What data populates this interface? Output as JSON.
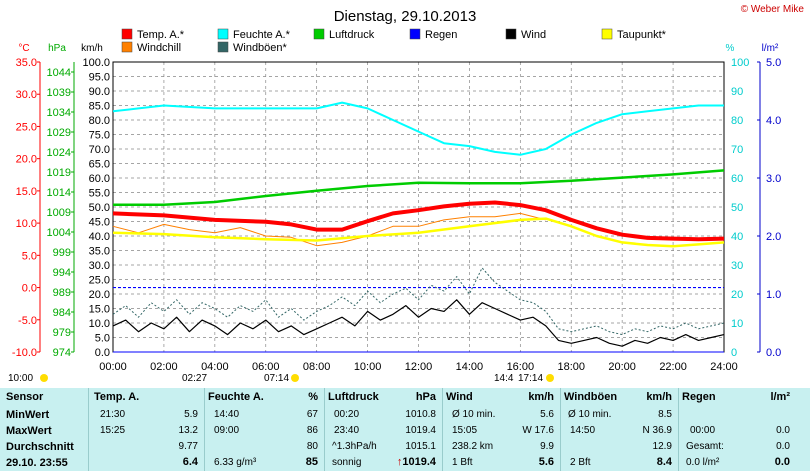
{
  "title": "Dienstag, 29.10.2013",
  "copyright": "© Weber Mike",
  "legend": [
    {
      "label": "Temp. A.*",
      "color": "#ff0000"
    },
    {
      "label": "Feuchte A.*",
      "color": "#00ffff"
    },
    {
      "label": "Luftdruck",
      "color": "#00cc00"
    },
    {
      "label": "Regen",
      "color": "#0000ff"
    },
    {
      "label": "Wind",
      "color": "#000000"
    },
    {
      "label": "Taupunkt*",
      "color": "#ffff00"
    },
    {
      "label": "Windchill",
      "color": "#ff8000"
    },
    {
      "label": "Windböen*",
      "color": "#336666"
    }
  ],
  "axis_units": {
    "temp": "°C",
    "press": "hPa",
    "wind": "km/h",
    "hum": "%",
    "rain": "l/m²"
  },
  "sun_markers": {
    "left": "10:00",
    "rise_top": "02:27",
    "rise_bottom": "07:14",
    "set_top": "14:4",
    "set_bottom": "17:14"
  },
  "chart_data": {
    "type": "line",
    "title": "Dienstag, 29.10.2013",
    "x_range": [
      "00:00",
      "24:00"
    ],
    "x_ticks": [
      "00:00",
      "02:00",
      "04:00",
      "06:00",
      "08:00",
      "10:00",
      "12:00",
      "14:00",
      "16:00",
      "18:00",
      "20:00",
      "22:00",
      "24:00"
    ],
    "axes": {
      "temp": {
        "unit": "°C",
        "range": [
          -10,
          35
        ],
        "ticks": [
          "35.0",
          "30.0",
          "25.0",
          "20.0",
          "15.0",
          "10.0",
          "5.0",
          "0.0",
          "-5.0",
          "-10.0"
        ]
      },
      "press": {
        "unit": "hPa",
        "range": [
          974,
          1046.5
        ],
        "ticks": [
          "1044",
          "1039",
          "1034",
          "1029",
          "1024",
          "1019",
          "1014",
          "1009",
          "1004",
          "999",
          "994",
          "989",
          "984",
          "979",
          "974"
        ]
      },
      "wind": {
        "unit": "km/h",
        "range": [
          0,
          100
        ],
        "ticks": [
          "100.0",
          "95.0",
          "90.0",
          "85.0",
          "80.0",
          "75.0",
          "70.0",
          "65.0",
          "60.0",
          "55.0",
          "50.0",
          "45.0",
          "40.0",
          "35.0",
          "30.0",
          "25.0",
          "20.0",
          "15.0",
          "10.0",
          "5.0",
          "0.0"
        ]
      },
      "hum": {
        "unit": "%",
        "range": [
          0,
          100
        ],
        "ticks": [
          "100",
          "90",
          "80",
          "70",
          "60",
          "50",
          "40",
          "30",
          "20",
          "10",
          "0"
        ]
      },
      "rain": {
        "unit": "l/m²",
        "range": [
          0,
          5
        ],
        "ticks": [
          "5.0",
          "4.0",
          "3.0",
          "2.0",
          "1.0",
          "0.0"
        ]
      }
    },
    "series": [
      {
        "name": "Temp. A.*",
        "axis": "temp",
        "color": "#ff0000",
        "x": [
          0,
          2,
          4,
          6,
          7,
          8,
          9,
          10,
          11,
          12,
          13,
          14,
          15,
          15.5,
          16,
          17,
          18,
          19,
          20,
          21,
          22,
          23,
          24
        ],
        "y": [
          11.5,
          11.2,
          10.5,
          10.2,
          9.8,
          9.0,
          9.0,
          10.3,
          11.5,
          12.0,
          12.6,
          13.0,
          13.2,
          13.0,
          12.8,
          12.0,
          10.5,
          9.2,
          8.2,
          7.7,
          7.6,
          7.5,
          7.6
        ]
      },
      {
        "name": "Feuchte A.*",
        "axis": "hum",
        "color": "#00ffff",
        "x": [
          0,
          1,
          2,
          4,
          6,
          7,
          8,
          9,
          10,
          11,
          12,
          13,
          14,
          15,
          16,
          17,
          18,
          19,
          20,
          21,
          22,
          23,
          24
        ],
        "y": [
          83,
          84,
          85,
          84,
          84,
          84,
          84,
          86,
          84,
          80,
          76,
          72,
          71,
          69,
          68,
          70,
          75,
          79,
          82,
          83,
          84,
          85,
          85
        ]
      },
      {
        "name": "Luftdruck",
        "axis": "press",
        "color": "#00cc00",
        "x": [
          0,
          2,
          4,
          6,
          8,
          10,
          12,
          14,
          16,
          18,
          20,
          22,
          24
        ],
        "y": [
          1010.8,
          1010.8,
          1011.5,
          1013.0,
          1014.3,
          1015.5,
          1016.3,
          1016.2,
          1016.2,
          1016.8,
          1017.6,
          1018.4,
          1019.4
        ]
      },
      {
        "name": "Taupunkt*",
        "axis": "temp",
        "color": "#ffff00",
        "x": [
          0,
          2,
          4,
          6,
          8,
          10,
          12,
          14,
          16,
          17,
          18,
          19,
          20,
          21,
          22,
          23,
          24
        ],
        "y": [
          8.5,
          8.3,
          7.8,
          7.5,
          7.3,
          8.0,
          8.5,
          9.5,
          10.5,
          10.7,
          9.5,
          8.0,
          7.0,
          6.6,
          6.4,
          6.7,
          7.0
        ]
      },
      {
        "name": "Windchill",
        "axis": "temp",
        "color": "#ff8000",
        "x": [
          0,
          1,
          2,
          3,
          4,
          5,
          6,
          7,
          8,
          9,
          10,
          11,
          12,
          13,
          14,
          15,
          16,
          17
        ],
        "y": [
          9.5,
          8.5,
          9.8,
          9.0,
          8.5,
          9.3,
          8.0,
          7.8,
          6.5,
          7.0,
          8.0,
          9.5,
          9.5,
          10.5,
          11.0,
          11.0,
          11.5,
          10.5
        ]
      },
      {
        "name": "Wind",
        "axis": "wind",
        "color": "#000000",
        "x": [
          0,
          0.5,
          1,
          1.5,
          2,
          2.5,
          3,
          3.5,
          4,
          4.5,
          5,
          5.5,
          6,
          6.5,
          7,
          7.5,
          8,
          8.5,
          9,
          9.5,
          10,
          10.5,
          11,
          11.5,
          12,
          12.5,
          13,
          13.5,
          14,
          14.5,
          15,
          15.5,
          16,
          16.5,
          17,
          17.5,
          18,
          18.5,
          19,
          19.5,
          20,
          20.5,
          21,
          21.5,
          22,
          22.5,
          23,
          23.5,
          24
        ],
        "y": [
          9,
          11,
          7,
          10,
          8,
          12,
          7,
          11,
          9,
          6,
          10,
          8,
          11,
          7,
          9,
          6,
          8,
          10,
          12,
          9,
          14,
          11,
          13,
          16,
          12,
          15,
          14,
          18,
          13,
          17,
          15,
          13,
          11,
          12,
          9,
          4,
          3,
          4,
          5,
          3,
          2,
          4,
          3,
          5,
          4,
          6,
          4,
          5,
          6
        ]
      },
      {
        "name": "Windböen*",
        "axis": "wind",
        "color": "#336666",
        "x": [
          0,
          0.5,
          1,
          1.5,
          2,
          2.5,
          3,
          3.5,
          4,
          4.5,
          5,
          5.5,
          6,
          6.5,
          7,
          7.5,
          8,
          8.5,
          9,
          9.5,
          10,
          10.5,
          11,
          11.5,
          12,
          12.5,
          13,
          13.5,
          14,
          14.5,
          15,
          15.5,
          16,
          16.5,
          17,
          17.5,
          18,
          18.5,
          19,
          19.5,
          20,
          20.5,
          21,
          21.5,
          22,
          22.5,
          23,
          23.5,
          24
        ],
        "y": [
          13,
          16,
          12,
          17,
          14,
          18,
          13,
          17,
          15,
          12,
          16,
          14,
          18,
          12,
          15,
          11,
          14,
          16,
          19,
          16,
          21,
          17,
          20,
          22,
          18,
          23,
          21,
          26,
          20,
          29,
          24,
          21,
          18,
          17,
          14,
          8,
          7,
          8,
          9,
          7,
          6,
          8,
          7,
          9,
          8,
          10,
          8,
          9,
          10
        ]
      },
      {
        "name": "Regen",
        "axis": "rain",
        "color": "#0000ff",
        "x": [
          0,
          24
        ],
        "y": [
          0,
          0
        ]
      }
    ]
  },
  "table": {
    "sensor": {
      "header": "Sensor",
      "rows": [
        "MinWert",
        "MaxWert",
        "Durchschnitt"
      ],
      "footer": "29.10. 23:55"
    },
    "temp": {
      "header": "Temp. A.",
      "unit": "",
      "min_time": "21:30",
      "min_val": "5.9",
      "max_time": "15:25",
      "max_val": "13.2",
      "avg": "9.77",
      "current": "6.4"
    },
    "hum": {
      "header": "Feuchte A.",
      "unit": "%",
      "min_time": "14:40",
      "min_val": "67",
      "max_time": "09:00",
      "max_val": "86",
      "avg": "80",
      "abs": "6.33 g/m³",
      "current": "85"
    },
    "press": {
      "header": "Luftdruck",
      "unit": "hPa",
      "min_time": "00:20",
      "min_val": "1010.8",
      "max_time": "23:40",
      "max_val": "1019.4",
      "trend": "^1.3hPa/h",
      "avg": "1015.1",
      "weather": "sonnig",
      "current": "1019.4"
    },
    "wind": {
      "header": "Wind",
      "unit": "km/h",
      "r1_label": "Ø 10 min.",
      "r1_val": "5.6",
      "r2_time": "15:05",
      "r2_val": "W 17.6",
      "r3_label": "238.2 km",
      "r3_val": "9.9",
      "bft": "1 Bft",
      "current": "5.6"
    },
    "gust": {
      "header": "Windböen",
      "unit": "km/h",
      "r1_label": "Ø 10 min.",
      "r1_val": "8.5",
      "r2_time": "14:50",
      "r2_val": "N 36.9",
      "avg": "12.9",
      "bft": "2 Bft",
      "current": "8.4"
    },
    "rain": {
      "header": "Regen",
      "unit": "l/m²",
      "r2_time": "00:00",
      "r2_val": "0.0",
      "total_label": "Gesamt:",
      "total_val": "0.0",
      "bottom_label": "0.0 l/m²",
      "current": "0.0"
    }
  }
}
